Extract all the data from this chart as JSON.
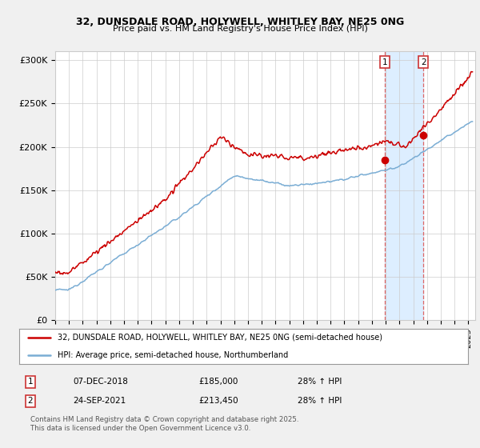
{
  "title1": "32, DUNSDALE ROAD, HOLYWELL, WHITLEY BAY, NE25 0NG",
  "title2": "Price paid vs. HM Land Registry's House Price Index (HPI)",
  "ylabel_ticks": [
    "£0",
    "£50K",
    "£100K",
    "£150K",
    "£200K",
    "£250K",
    "£300K"
  ],
  "ytick_values": [
    0,
    50000,
    100000,
    150000,
    200000,
    250000,
    300000
  ],
  "ylim": [
    0,
    310000
  ],
  "xlim_start": 1995.0,
  "xlim_end": 2025.5,
  "red_color": "#cc0000",
  "blue_color": "#7aadd4",
  "shaded_color": "#ddeeff",
  "vline_color": "#dd6666",
  "marker1_x": 2018.92,
  "marker1_y": 185000,
  "marker2_x": 2021.73,
  "marker2_y": 213450,
  "annotation1": [
    "1",
    "07-DEC-2018",
    "£185,000",
    "28% ↑ HPI"
  ],
  "annotation2": [
    "2",
    "24-SEP-2021",
    "£213,450",
    "28% ↑ HPI"
  ],
  "legend_line1": "32, DUNSDALE ROAD, HOLYWELL, WHITLEY BAY, NE25 0NG (semi-detached house)",
  "legend_line2": "HPI: Average price, semi-detached house, Northumberland",
  "footer": "Contains HM Land Registry data © Crown copyright and database right 2025.\nThis data is licensed under the Open Government Licence v3.0.",
  "background_color": "#f0f0f0",
  "plot_bg_color": "#ffffff"
}
